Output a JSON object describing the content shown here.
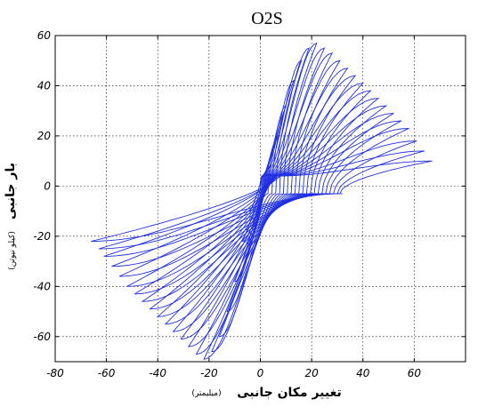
{
  "chart_data": {
    "type": "line",
    "title": "O2S",
    "xlabel": "تغییر مکان جانبی",
    "xlabel_unit": "(میلیمتر)",
    "ylabel": "بار جانبی",
    "ylabel_unit": "(کیلو نیوتن)",
    "xlim": [
      -80,
      80
    ],
    "ylim": [
      -70,
      60
    ],
    "xticks": [
      -80,
      -60,
      -40,
      -20,
      0,
      20,
      40,
      60
    ],
    "yticks": [
      -60,
      -40,
      -20,
      0,
      20,
      40,
      60
    ],
    "grid": true,
    "series_color": "#1f2fe0",
    "cycles": [
      {
        "amp_pos": 4,
        "amp_neg": -4,
        "fmax": 8,
        "fmin": -10,
        "xr_pos": 1.5,
        "xr_neg": -1.5
      },
      {
        "amp_pos": 7,
        "amp_neg": -7,
        "fmax": 20,
        "fmin": -22,
        "xr_pos": 3,
        "xr_neg": -3
      },
      {
        "amp_pos": 10,
        "amp_neg": -10,
        "fmax": 32,
        "fmin": -38,
        "xr_pos": 4.5,
        "xr_neg": -4.5
      },
      {
        "amp_pos": 13,
        "amp_neg": -13,
        "fmax": 42,
        "fmin": -50,
        "xr_pos": 6,
        "xr_neg": -6
      },
      {
        "amp_pos": 16,
        "amp_neg": -16,
        "fmax": 50,
        "fmin": -60,
        "xr_pos": 7.5,
        "xr_neg": -7.5
      },
      {
        "amp_pos": 19,
        "amp_neg": -19,
        "fmax": 55,
        "fmin": -66,
        "xr_pos": 9,
        "xr_neg": -9
      },
      {
        "amp_pos": 22,
        "amp_neg": -22,
        "fmax": 57,
        "fmin": -69,
        "xr_pos": 10.5,
        "xr_neg": -10.5
      },
      {
        "amp_pos": 25,
        "amp_neg": -25,
        "fmax": 55,
        "fmin": -67,
        "xr_pos": 12,
        "xr_neg": -12
      },
      {
        "amp_pos": 28,
        "amp_neg": -28,
        "fmax": 53,
        "fmin": -64,
        "xr_pos": 13.5,
        "xr_neg": -13.5
      },
      {
        "amp_pos": 31,
        "amp_neg": -31,
        "fmax": 50,
        "fmin": -61,
        "xr_pos": 15,
        "xr_neg": -15
      },
      {
        "amp_pos": 34,
        "amp_neg": -34,
        "fmax": 47,
        "fmin": -58,
        "xr_pos": 16.5,
        "xr_neg": -16.5
      },
      {
        "amp_pos": 37,
        "amp_neg": -37,
        "fmax": 44,
        "fmin": -55,
        "xr_pos": 18,
        "xr_neg": -18
      },
      {
        "amp_pos": 40,
        "amp_neg": -40,
        "fmax": 41,
        "fmin": -52,
        "xr_pos": 19.5,
        "xr_neg": -19.5
      },
      {
        "amp_pos": 43,
        "amp_neg": -43,
        "fmax": 38,
        "fmin": -49,
        "xr_pos": 21,
        "xr_neg": -21
      },
      {
        "amp_pos": 46,
        "amp_neg": -46,
        "fmax": 35,
        "fmin": -46,
        "xr_pos": 22.5,
        "xr_neg": -22.5
      },
      {
        "amp_pos": 49,
        "amp_neg": -49,
        "fmax": 32,
        "fmin": -43,
        "xr_pos": 24,
        "xr_neg": -24
      },
      {
        "amp_pos": 52,
        "amp_neg": -52,
        "fmax": 29,
        "fmin": -40,
        "xr_pos": 25.5,
        "xr_neg": -25.5
      },
      {
        "amp_pos": 55,
        "amp_neg": -55,
        "fmax": 26,
        "fmin": -36,
        "xr_pos": 27,
        "xr_neg": -27
      },
      {
        "amp_pos": 58,
        "amp_neg": -58,
        "fmax": 23,
        "fmin": -32,
        "xr_pos": 28.5,
        "xr_neg": -28.5
      },
      {
        "amp_pos": 61,
        "amp_neg": -61,
        "fmax": 18,
        "fmin": -28,
        "xr_pos": 30,
        "xr_neg": -30
      },
      {
        "amp_pos": 64,
        "amp_neg": -63,
        "fmax": 14,
        "fmin": -25,
        "xr_pos": 31,
        "xr_neg": -31
      },
      {
        "amp_pos": 67,
        "amp_neg": -66,
        "fmax": 10,
        "fmin": -22,
        "xr_pos": 32,
        "xr_neg": -32
      }
    ]
  }
}
